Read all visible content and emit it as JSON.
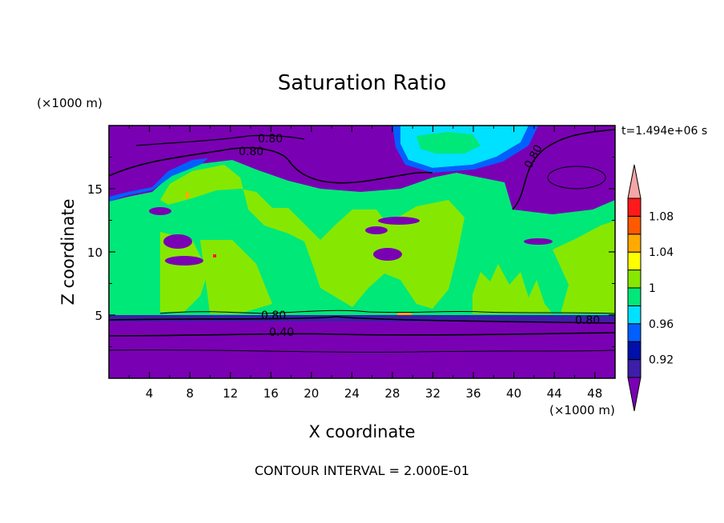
{
  "chart_data": {
    "type": "heatmap",
    "title": "Saturation Ratio",
    "xlabel": "X coordinate",
    "ylabel": "Z coordinate",
    "x_unit": "(×1000 m)",
    "y_unit": "(×1000 m)",
    "time_label": "t=1.494e+06 s",
    "footer": "CONTOUR INTERVAL = 2.000E-01",
    "xlim": [
      0,
      50
    ],
    "ylim": [
      0,
      20
    ],
    "x_ticks": [
      "4",
      "8",
      "12",
      "16",
      "20",
      "24",
      "28",
      "32",
      "36",
      "40",
      "44",
      "48"
    ],
    "y_ticks": [
      "5",
      "10",
      "15"
    ],
    "colorbar": {
      "levels": [
        0.9,
        0.92,
        0.94,
        0.96,
        0.98,
        1.0,
        1.02,
        1.04,
        1.06,
        1.08,
        1.1
      ],
      "tick_labels": [
        "0.92",
        "0.96",
        "1",
        "1.04",
        "1.08"
      ],
      "colors": [
        "#7a00b4",
        "#3c1ea8",
        "#0010a8",
        "#0060ff",
        "#00e0ff",
        "#00e878",
        "#86e800",
        "#ffff00",
        "#ffaa00",
        "#ff5a00",
        "#ff1a1a",
        "#f4a6a6"
      ]
    },
    "contour_labels": [
      "0.80",
      "0.80",
      "0.80",
      "0.80",
      "0.80",
      "0.40"
    ],
    "regions": {
      "lower_layer": {
        "z_range": [
          0,
          5
        ],
        "ratio": "<0.90"
      },
      "mid_cloud_layer": {
        "z_range": [
          5,
          15
        ],
        "ratio": "0.98–1.02"
      },
      "upper_layer": {
        "z_range": [
          15,
          20
        ],
        "ratio": "<0.90"
      }
    }
  }
}
